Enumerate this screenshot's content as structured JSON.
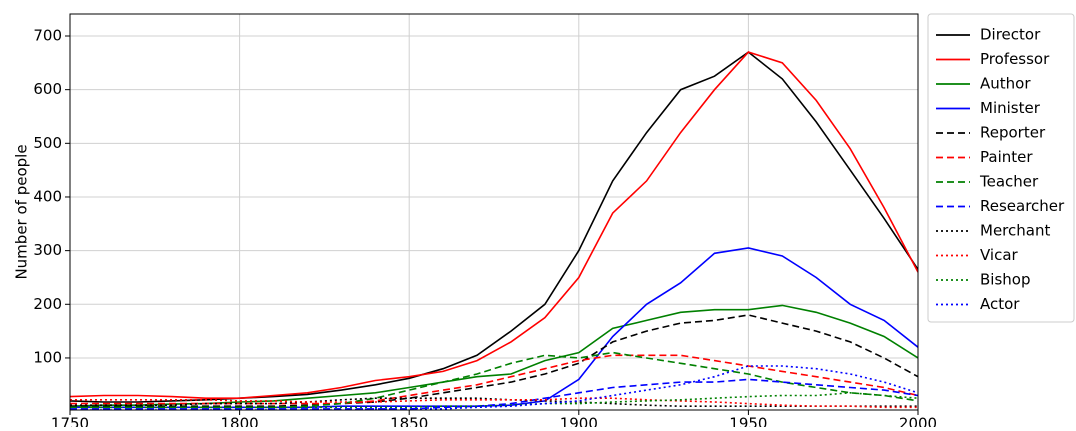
{
  "chart_data": {
    "type": "line",
    "ylabel": "Number of people",
    "x": [
      1750,
      1760,
      1770,
      1780,
      1790,
      1800,
      1810,
      1820,
      1830,
      1840,
      1850,
      1860,
      1870,
      1880,
      1890,
      1900,
      1910,
      1920,
      1930,
      1940,
      1950,
      1960,
      1970,
      1980,
      1990,
      2000
    ],
    "xlim": [
      1750,
      2000
    ],
    "xticks": [
      1750,
      1800,
      1850,
      1900,
      1950,
      2000
    ],
    "ylim": [
      3,
      741
    ],
    "yticks": [
      100,
      200,
      300,
      400,
      500,
      600,
      700
    ],
    "grid": true,
    "legend": "outside right",
    "series": [
      {
        "name": "Director",
        "color": "#000000",
        "linestyle": "solid",
        "values": [
          20,
          18,
          18,
          20,
          22,
          25,
          28,
          32,
          40,
          50,
          62,
          80,
          105,
          150,
          200,
          300,
          430,
          520,
          600,
          625,
          670,
          620,
          540,
          450,
          360,
          265
        ]
      },
      {
        "name": "Professor",
        "color": "#ff0000",
        "linestyle": "solid",
        "values": [
          28,
          30,
          30,
          28,
          25,
          25,
          30,
          35,
          45,
          58,
          65,
          75,
          95,
          130,
          175,
          250,
          370,
          430,
          520,
          600,
          670,
          650,
          580,
          490,
          380,
          260
        ]
      },
      {
        "name": "Author",
        "color": "#008000",
        "linestyle": "solid",
        "values": [
          10,
          12,
          12,
          14,
          15,
          18,
          20,
          25,
          30,
          35,
          45,
          55,
          65,
          70,
          95,
          110,
          155,
          170,
          185,
          190,
          190,
          198,
          185,
          165,
          140,
          100
        ]
      },
      {
        "name": "Minister",
        "color": "#0000ff",
        "linestyle": "solid",
        "values": [
          8,
          8,
          8,
          8,
          8,
          8,
          8,
          8,
          10,
          10,
          10,
          10,
          10,
          12,
          20,
          60,
          140,
          200,
          240,
          295,
          305,
          290,
          250,
          200,
          170,
          120
        ]
      },
      {
        "name": "Reporter",
        "color": "#000000",
        "linestyle": "dashed",
        "values": [
          10,
          10,
          10,
          10,
          10,
          10,
          10,
          12,
          15,
          18,
          25,
          35,
          45,
          55,
          70,
          90,
          130,
          150,
          165,
          170,
          180,
          165,
          150,
          130,
          100,
          65
        ]
      },
      {
        "name": "Painter",
        "color": "#ff0000",
        "linestyle": "dashed",
        "values": [
          15,
          15,
          15,
          15,
          15,
          15,
          15,
          15,
          15,
          20,
          30,
          40,
          50,
          65,
          80,
          95,
          105,
          105,
          105,
          95,
          85,
          75,
          65,
          55,
          45,
          30
        ]
      },
      {
        "name": "Teacher",
        "color": "#008000",
        "linestyle": "dashed",
        "values": [
          8,
          8,
          8,
          8,
          8,
          8,
          8,
          10,
          15,
          25,
          40,
          55,
          70,
          90,
          105,
          100,
          110,
          100,
          90,
          80,
          70,
          55,
          45,
          35,
          30,
          20
        ]
      },
      {
        "name": "Researcher",
        "color": "#0000ff",
        "linestyle": "dashed",
        "values": [
          5,
          5,
          5,
          5,
          5,
          5,
          5,
          5,
          5,
          5,
          5,
          8,
          10,
          15,
          25,
          35,
          45,
          50,
          55,
          55,
          60,
          55,
          50,
          45,
          40,
          30
        ]
      },
      {
        "name": "Merchant",
        "color": "#000000",
        "linestyle": "dotted",
        "values": [
          12,
          12,
          12,
          12,
          15,
          15,
          15,
          18,
          22,
          25,
          25,
          25,
          25,
          22,
          20,
          18,
          15,
          12,
          10,
          10,
          10,
          10,
          10,
          10,
          10,
          10
        ]
      },
      {
        "name": "Vicar",
        "color": "#ff0000",
        "linestyle": "dotted",
        "values": [
          22,
          22,
          22,
          22,
          22,
          20,
          20,
          18,
          18,
          18,
          20,
          22,
          22,
          22,
          22,
          25,
          25,
          22,
          20,
          18,
          15,
          12,
          10,
          10,
          8,
          8
        ]
      },
      {
        "name": "Bishop",
        "color": "#008000",
        "linestyle": "dotted",
        "values": [
          8,
          8,
          8,
          8,
          8,
          8,
          8,
          8,
          8,
          8,
          8,
          10,
          10,
          12,
          15,
          15,
          18,
          20,
          22,
          25,
          28,
          30,
          30,
          35,
          30,
          25
        ]
      },
      {
        "name": "Actor",
        "color": "#0000ff",
        "linestyle": "dotted",
        "values": [
          3,
          3,
          3,
          3,
          3,
          3,
          3,
          3,
          3,
          5,
          5,
          5,
          8,
          10,
          15,
          20,
          30,
          40,
          50,
          65,
          85,
          85,
          80,
          70,
          55,
          35
        ]
      }
    ]
  }
}
